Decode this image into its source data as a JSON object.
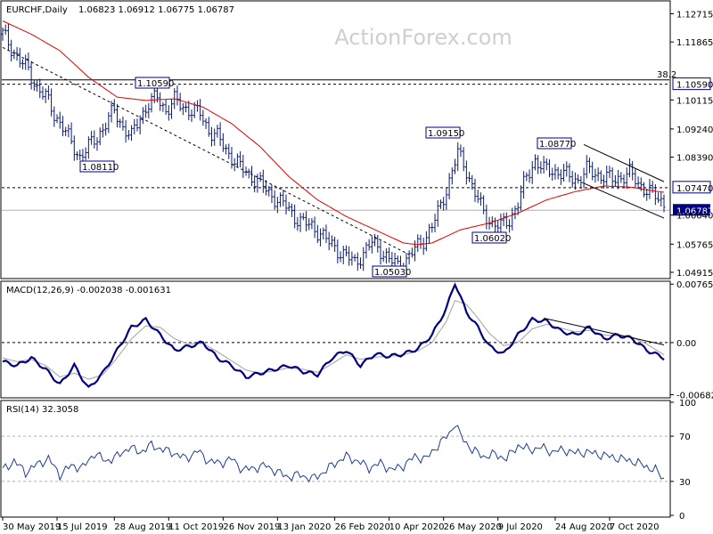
{
  "header": {
    "symbol": "EURCHF,Daily",
    "ohlc": "1.06823 1.06912 1.06775 1.06787",
    "macd": "MACD(12,26,9) -0.002038 -0.001631",
    "rsi": "RSI(14) 32.3058"
  },
  "watermark": "ActionForex.com",
  "colors": {
    "candle": "#0a1a70",
    "ma": "#e00000",
    "macd_line": "#000080",
    "signal_line": "#a0a0a0",
    "rsi_line": "#1e3c96",
    "box_border": "#000080",
    "price_box": "#000080"
  },
  "chart_data": [
    {
      "type": "line",
      "name": "price",
      "x_labels": [
        "30 May 2019",
        "15 Jul 2019",
        "28 Aug 2019",
        "11 Oct 2019",
        "26 Nov 2019",
        "13 Jan 2020",
        "26 Feb 2020",
        "10 Apr 2020",
        "26 May 2020",
        "9 Jul 2020",
        "24 Aug 2020",
        "7 Oct 2020"
      ],
      "y_ticks": [
        "1.12715",
        "1.11865",
        "1.10590",
        "1.10115",
        "1.09240",
        "1.08390",
        "1.07470",
        "1.06787",
        "1.06640",
        "1.05765",
        "1.04915"
      ],
      "ylim": [
        1.0478,
        1.1305
      ],
      "fib_label": "38.2",
      "fib_level": 1.1072,
      "levels": [
        {
          "value": 1.1059,
          "label": "1.10590"
        },
        {
          "value": 1.0747,
          "label": "1.07470"
        }
      ],
      "current_price": {
        "value": 1.06787,
        "label": "1.06787"
      },
      "annotations": [
        {
          "label": "1.10590",
          "value": 1.1059
        },
        {
          "label": "1.08110",
          "value": 1.0811
        },
        {
          "label": "1.09150",
          "value": 1.0915
        },
        {
          "label": "1.08770",
          "value": 1.0877
        },
        {
          "label": "1.06020",
          "value": 1.0602
        },
        {
          "label": "1.05030",
          "value": 1.0503
        }
      ],
      "close_path": [
        [
          0,
          1.121
        ],
        [
          3,
          1.117
        ],
        [
          6,
          1.113
        ],
        [
          9,
          1.11
        ],
        [
          12,
          1.105
        ],
        [
          15,
          1.102
        ],
        [
          18,
          1.097
        ],
        [
          21,
          1.093
        ],
        [
          24,
          1.088
        ],
        [
          27,
          1.084
        ],
        [
          30,
          1.087
        ],
        [
          33,
          1.09
        ],
        [
          36,
          1.094
        ],
        [
          39,
          1.098
        ],
        [
          42,
          1.093
        ],
        [
          45,
          1.09
        ],
        [
          48,
          1.096
        ],
        [
          51,
          1.1
        ],
        [
          54,
          1.102
        ],
        [
          57,
          1.098
        ],
        [
          60,
          1.101
        ],
        [
          63,
          1.099
        ],
        [
          66,
          1.098
        ],
        [
          69,
          1.097
        ],
        [
          72,
          1.092
        ],
        [
          75,
          1.09
        ],
        [
          78,
          1.086
        ],
        [
          81,
          1.083
        ],
        [
          84,
          1.08
        ],
        [
          87,
          1.078
        ],
        [
          90,
          1.076
        ],
        [
          93,
          1.073
        ],
        [
          96,
          1.071
        ],
        [
          99,
          1.069
        ],
        [
          102,
          1.066
        ],
        [
          105,
          1.064
        ],
        [
          108,
          1.063
        ],
        [
          111,
          1.061
        ],
        [
          114,
          1.058
        ],
        [
          117,
          1.056
        ],
        [
          120,
          1.054
        ],
        [
          123,
          1.052
        ],
        [
          126,
          1.055
        ],
        [
          129,
          1.058
        ],
        [
          132,
          1.056
        ],
        [
          135,
          1.053
        ],
        [
          138,
          1.051
        ],
        [
          141,
          1.053
        ],
        [
          144,
          1.056
        ],
        [
          147,
          1.059
        ],
        [
          150,
          1.063
        ],
        [
          153,
          1.069
        ],
        [
          156,
          1.077
        ],
        [
          159,
          1.085
        ],
        [
          162,
          1.08
        ],
        [
          165,
          1.073
        ],
        [
          168,
          1.067
        ],
        [
          171,
          1.064
        ],
        [
          174,
          1.063
        ],
        [
          177,
          1.065
        ],
        [
          180,
          1.07
        ],
        [
          183,
          1.078
        ],
        [
          186,
          1.083
        ],
        [
          189,
          1.08
        ],
        [
          192,
          1.08
        ],
        [
          195,
          1.079
        ],
        [
          198,
          1.078
        ],
        [
          201,
          1.077
        ],
        [
          204,
          1.08
        ],
        [
          207,
          1.079
        ],
        [
          210,
          1.078
        ],
        [
          213,
          1.077
        ],
        [
          216,
          1.078
        ],
        [
          219,
          1.079
        ],
        [
          222,
          1.076
        ],
        [
          225,
          1.074
        ],
        [
          228,
          1.072
        ],
        [
          231,
          1.07
        ]
      ],
      "ma_path": [
        [
          0,
          1.125
        ],
        [
          10,
          1.121
        ],
        [
          20,
          1.116
        ],
        [
          30,
          1.108
        ],
        [
          40,
          1.102
        ],
        [
          50,
          1.101
        ],
        [
          60,
          1.1015
        ],
        [
          70,
          1.099
        ],
        [
          80,
          1.094
        ],
        [
          90,
          1.087
        ],
        [
          100,
          1.078
        ],
        [
          110,
          1.071
        ],
        [
          120,
          1.066
        ],
        [
          130,
          1.062
        ],
        [
          140,
          1.058
        ],
        [
          145,
          1.0575
        ],
        [
          150,
          1.058
        ],
        [
          160,
          1.062
        ],
        [
          170,
          1.064
        ],
        [
          180,
          1.067
        ],
        [
          190,
          1.071
        ],
        [
          200,
          1.0735
        ],
        [
          210,
          1.0752
        ],
        [
          220,
          1.0748
        ],
        [
          225,
          1.074
        ],
        [
          231,
          1.0733
        ]
      ],
      "trendlines": [
        {
          "from": [
            0,
            1.117
          ],
          "to": [
            142,
            1.0545
          ],
          "style": "dashed"
        },
        {
          "from": [
            203,
            1.0877
          ],
          "to": [
            231,
            1.0765
          ],
          "style": "solid"
        },
        {
          "from": [
            203,
            1.076
          ],
          "to": [
            231,
            1.0655
          ],
          "style": "solid"
        }
      ],
      "total_bars": 232
    },
    {
      "type": "line",
      "name": "MACD(12,26,9)",
      "y_ticks": [
        "0.007655",
        "0.00",
        "-0.006822"
      ],
      "ylim": [
        -0.007,
        0.0078
      ],
      "macd": [
        [
          0,
          -0.0025
        ],
        [
          5,
          -0.003
        ],
        [
          10,
          -0.002
        ],
        [
          15,
          -0.0035
        ],
        [
          20,
          -0.0055
        ],
        [
          25,
          -0.003
        ],
        [
          30,
          -0.006
        ],
        [
          35,
          -0.004
        ],
        [
          40,
          -0.001
        ],
        [
          45,
          0.002
        ],
        [
          50,
          0.003
        ],
        [
          55,
          0.001
        ],
        [
          60,
          -0.001
        ],
        [
          65,
          -0.0005
        ],
        [
          70,
          0.0
        ],
        [
          75,
          -0.002
        ],
        [
          80,
          -0.003
        ],
        [
          85,
          -0.0045
        ],
        [
          90,
          -0.004
        ],
        [
          95,
          -0.0035
        ],
        [
          100,
          -0.003
        ],
        [
          105,
          -0.0038
        ],
        [
          110,
          -0.0042
        ],
        [
          115,
          -0.002
        ],
        [
          120,
          -0.001
        ],
        [
          125,
          -0.003
        ],
        [
          130,
          -0.0015
        ],
        [
          135,
          -0.0018
        ],
        [
          140,
          -0.0015
        ],
        [
          145,
          -0.0008
        ],
        [
          150,
          0.001
        ],
        [
          155,
          0.0045
        ],
        [
          158,
          0.0078
        ],
        [
          162,
          0.004
        ],
        [
          166,
          0.002
        ],
        [
          170,
          -0.0005
        ],
        [
          175,
          -0.0015
        ],
        [
          180,
          0.001
        ],
        [
          185,
          0.003
        ],
        [
          190,
          0.0028
        ],
        [
          195,
          0.0015
        ],
        [
          200,
          0.001
        ],
        [
          205,
          0.002
        ],
        [
          210,
          0.0005
        ],
        [
          215,
          0.001
        ],
        [
          220,
          0.0005
        ],
        [
          225,
          -0.001
        ],
        [
          231,
          -0.002
        ]
      ],
      "signal": [
        [
          0,
          -0.002
        ],
        [
          5,
          -0.0025
        ],
        [
          10,
          -0.0022
        ],
        [
          15,
          -0.003
        ],
        [
          20,
          -0.0045
        ],
        [
          25,
          -0.004
        ],
        [
          30,
          -0.0048
        ],
        [
          35,
          -0.0042
        ],
        [
          40,
          -0.002
        ],
        [
          45,
          0.0005
        ],
        [
          50,
          0.0022
        ],
        [
          55,
          0.002
        ],
        [
          60,
          0.0005
        ],
        [
          65,
          -0.0002
        ],
        [
          70,
          -0.0001
        ],
        [
          75,
          -0.0012
        ],
        [
          80,
          -0.0024
        ],
        [
          85,
          -0.0036
        ],
        [
          90,
          -0.004
        ],
        [
          95,
          -0.0037
        ],
        [
          100,
          -0.0033
        ],
        [
          105,
          -0.0035
        ],
        [
          110,
          -0.0039
        ],
        [
          115,
          -0.0028
        ],
        [
          120,
          -0.0016
        ],
        [
          125,
          -0.0022
        ],
        [
          130,
          -0.0019
        ],
        [
          135,
          -0.0018
        ],
        [
          140,
          -0.0016
        ],
        [
          145,
          -0.0011
        ],
        [
          150,
          0.0
        ],
        [
          155,
          0.0028
        ],
        [
          158,
          0.0055
        ],
        [
          162,
          0.005
        ],
        [
          166,
          0.0032
        ],
        [
          170,
          0.0012
        ],
        [
          175,
          -0.0004
        ],
        [
          180,
          0.0
        ],
        [
          185,
          0.0018
        ],
        [
          190,
          0.0024
        ],
        [
          195,
          0.0019
        ],
        [
          200,
          0.0014
        ],
        [
          205,
          0.0016
        ],
        [
          210,
          0.001
        ],
        [
          215,
          0.0009
        ],
        [
          220,
          0.0007
        ],
        [
          225,
          -0.0002
        ],
        [
          231,
          -0.0016
        ]
      ],
      "trendline": {
        "from": [
          189,
          0.0032
        ],
        "to": [
          231,
          -0.0003
        ]
      }
    },
    {
      "type": "line",
      "name": "RSI(14)",
      "y_ticks": [
        "100",
        "70",
        "30",
        "0"
      ],
      "ylim": [
        0,
        100
      ],
      "levels": [
        70,
        30
      ],
      "values": [
        [
          0,
          40
        ],
        [
          4,
          48
        ],
        [
          8,
          38
        ],
        [
          12,
          45
        ],
        [
          16,
          50
        ],
        [
          20,
          36
        ],
        [
          24,
          44
        ],
        [
          28,
          42
        ],
        [
          32,
          55
        ],
        [
          36,
          48
        ],
        [
          40,
          52
        ],
        [
          44,
          60
        ],
        [
          48,
          56
        ],
        [
          52,
          62
        ],
        [
          56,
          58
        ],
        [
          60,
          55
        ],
        [
          64,
          50
        ],
        [
          68,
          57
        ],
        [
          72,
          48
        ],
        [
          76,
          46
        ],
        [
          80,
          50
        ],
        [
          84,
          40
        ],
        [
          88,
          42
        ],
        [
          92,
          44
        ],
        [
          96,
          38
        ],
        [
          100,
          34
        ],
        [
          104,
          36
        ],
        [
          108,
          32
        ],
        [
          112,
          38
        ],
        [
          116,
          46
        ],
        [
          120,
          52
        ],
        [
          124,
          48
        ],
        [
          128,
          42
        ],
        [
          132,
          46
        ],
        [
          136,
          40
        ],
        [
          140,
          44
        ],
        [
          144,
          52
        ],
        [
          148,
          50
        ],
        [
          152,
          62
        ],
        [
          156,
          72
        ],
        [
          158,
          82
        ],
        [
          160,
          70
        ],
        [
          164,
          58
        ],
        [
          168,
          52
        ],
        [
          172,
          54
        ],
        [
          176,
          50
        ],
        [
          180,
          62
        ],
        [
          184,
          58
        ],
        [
          188,
          60
        ],
        [
          192,
          56
        ],
        [
          196,
          58
        ],
        [
          200,
          55
        ],
        [
          204,
          56
        ],
        [
          208,
          54
        ],
        [
          212,
          52
        ],
        [
          216,
          50
        ],
        [
          220,
          48
        ],
        [
          224,
          44
        ],
        [
          228,
          40
        ],
        [
          231,
          32
        ]
      ]
    }
  ]
}
